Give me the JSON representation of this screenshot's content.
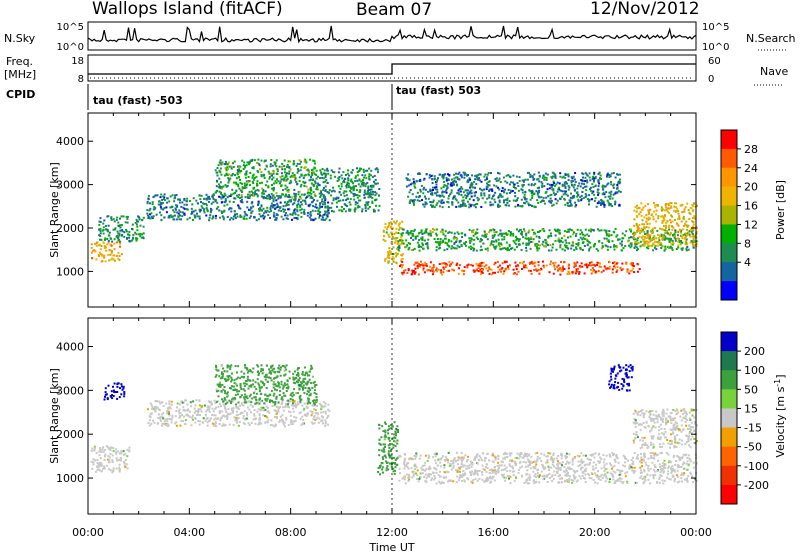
{
  "header": {
    "site": "Wallops Island (fitACF)",
    "beam": "Beam 07",
    "date": "12/Nov/2012"
  },
  "top_panels": {
    "nsky_label": "N.Sky",
    "nsearch_label": "N.Search",
    "nsky_ticks": [
      "10^5",
      "10^0"
    ],
    "nsearch_ticks": [
      "10^5",
      "10^0"
    ],
    "freq_label": "Freq.",
    "freq_unit": "[MHz]",
    "freq_ticks": [
      "18",
      "8"
    ],
    "nave_label": "Nave",
    "nave_ticks": [
      "60",
      "0"
    ],
    "cpid_label": "CPID",
    "cpid_segments": [
      "tau (fast) -503",
      "tau (fast) 503"
    ]
  },
  "axes": {
    "ylabel": "Slant Range [km]",
    "xlabel": "Time UT",
    "xticks": [
      "00:00",
      "04:00",
      "08:00",
      "12:00",
      "16:00",
      "20:00",
      "00:00"
    ],
    "yticks": [
      "1000",
      "2000",
      "3000",
      "4000"
    ]
  },
  "power_colorbar": {
    "label": "Power [dB]",
    "ticks": [
      "28",
      "24",
      "20",
      "16",
      "12",
      "8",
      "4"
    ],
    "colors": [
      "#ff0000",
      "#ff5a00",
      "#ff9600",
      "#f0b400",
      "#aab400",
      "#00b000",
      "#1e8c50",
      "#1464a0",
      "#0000ff"
    ]
  },
  "velocity_colorbar": {
    "label": "Velocity [m s^-1]",
    "ticks": [
      "200",
      "100",
      "50",
      "15",
      "-15",
      "-50",
      "-100",
      "-200"
    ],
    "colors": [
      "#0000c8",
      "#1e7850",
      "#3ca03c",
      "#78d23c",
      "#c8c8c8",
      "#f0a000",
      "#ff6400",
      "#f03200",
      "#ff0000"
    ]
  },
  "chart_data": {
    "type": "heatmap",
    "x_range_hours": [
      0,
      24
    ],
    "y_range_km": [
      180,
      4650
    ],
    "panels": [
      {
        "quantity": "Power",
        "units": "dB",
        "features": [
          {
            "t_start": 0.1,
            "t_end": 1.3,
            "range_km": [
              1250,
              1700
            ],
            "level_db": 22
          },
          {
            "t_start": 0.4,
            "t_end": 2.2,
            "range_km": [
              1700,
              2300
            ],
            "level_db": 8
          },
          {
            "t_start": 2.3,
            "t_end": 9.5,
            "range_km": [
              2200,
              2800
            ],
            "level_db": 6
          },
          {
            "t_start": 5.0,
            "t_end": 9.0,
            "range_km": [
              2700,
              3600
            ],
            "level_db": 10
          },
          {
            "t_start": 9.0,
            "t_end": 11.5,
            "range_km": [
              2400,
              3400
            ],
            "level_db": 8
          },
          {
            "t_start": 11.6,
            "t_end": 12.4,
            "range_km": [
              1200,
              2200
            ],
            "level_db": 18
          },
          {
            "t_start": 12.2,
            "t_end": 21.8,
            "range_km": [
              950,
              1250
            ],
            "level_db": 29
          },
          {
            "t_start": 12.2,
            "t_end": 24.0,
            "range_km": [
              1500,
              2000
            ],
            "level_db": 10
          },
          {
            "t_start": 12.5,
            "t_end": 21.0,
            "range_km": [
              2500,
              3300
            ],
            "level_db": 6
          },
          {
            "t_start": 21.5,
            "t_end": 24.0,
            "range_km": [
              1600,
              2600
            ],
            "level_db": 20
          }
        ]
      },
      {
        "quantity": "Velocity",
        "units": "m s^-1",
        "features": [
          {
            "t_start": 0.1,
            "t_end": 1.6,
            "range_km": [
              1150,
              1750
            ],
            "velocity": 0
          },
          {
            "t_start": 0.6,
            "t_end": 1.4,
            "range_km": [
              2800,
              3200
            ],
            "velocity": 200
          },
          {
            "t_start": 2.3,
            "t_end": 9.5,
            "range_km": [
              2200,
              2800
            ],
            "velocity": 0
          },
          {
            "t_start": 5.0,
            "t_end": 9.0,
            "range_km": [
              2700,
              3600
            ],
            "velocity": 40
          },
          {
            "t_start": 11.4,
            "t_end": 12.2,
            "range_km": [
              1100,
              2300
            ],
            "velocity": 60
          },
          {
            "t_start": 12.2,
            "t_end": 24.0,
            "range_km": [
              900,
              1600
            ],
            "velocity": 0
          },
          {
            "t_start": 20.5,
            "t_end": 21.5,
            "range_km": [
              3000,
              3600
            ],
            "velocity": 200
          },
          {
            "t_start": 21.5,
            "t_end": 24.0,
            "range_km": [
              1700,
              2600
            ],
            "velocity": 0
          }
        ]
      }
    ]
  }
}
